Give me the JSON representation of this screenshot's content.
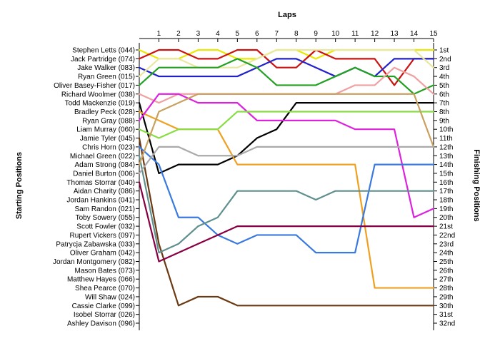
{
  "chart_data": {
    "type": "line",
    "title": "",
    "xlabel": "Laps",
    "ylabel_left": "Starting Positions",
    "ylabel_right": "Finishing Positions",
    "x": [
      1,
      2,
      3,
      4,
      5,
      6,
      7,
      8,
      9,
      10,
      11,
      12,
      13,
      14,
      15
    ],
    "xlim": [
      0,
      15
    ],
    "ylim": [
      1,
      32
    ],
    "y_inverted": true,
    "grid": false,
    "legend": "none",
    "start_labels": [
      "Stephen Letts (044)",
      "Jack Partridge (074)",
      "Jake Walker (083)",
      "Ryan Green (015)",
      "Oliver Basey-Fisher (017)",
      "Richard Woolmer (038)",
      "Todd Mackenzie (019)",
      "Bradley Peck (028)",
      "Ryan Gray (088)",
      "Liam Murray (060)",
      "Jamie Tyler (045)",
      "Chris Horn (023)",
      "Michael Green (022)",
      "Adam Strong (084)",
      "Daniel Burton (006)",
      "Thomas Storrar (040)",
      "Aidan Charity (086)",
      "Jordan Hankins (041)",
      "Sam Randon (021)",
      "Toby Sowery (055)",
      "Scott Fowler (032)",
      "Rupert Vickers (097)",
      "Patrycja Zabawska (033)",
      "Oliver Graham (042)",
      "Jordan Montgomery (082)",
      "Mason Bates (073)",
      "Matthew Hayes (066)",
      "Shea Pearce (070)",
      "Will Shaw (024)",
      "Cassie Clarke (099)",
      "Isobel Storrar (026)",
      "Ashley Davison (096)"
    ],
    "finish_labels": [
      "1st",
      "2nd",
      "3rd",
      "4th",
      "5th",
      "6th",
      "7th",
      "8th",
      "9th",
      "10th",
      "11th",
      "12th",
      "13th",
      "14th",
      "15th",
      "16th",
      "17th",
      "18th",
      "19th",
      "20th",
      "21st",
      "22nd",
      "23rd",
      "24th",
      "25th",
      "26th",
      "27th",
      "28th",
      "29th",
      "30th",
      "31st",
      "32nd"
    ],
    "series": [
      {
        "color": "#e8e800",
        "positions": [
          1,
          2,
          2,
          1,
          1,
          2,
          2,
          1,
          1,
          2,
          1,
          1,
          1,
          1,
          1,
          1
        ]
      },
      {
        "color": "#cc1111",
        "positions": [
          2,
          1,
          1,
          2,
          2,
          1,
          1,
          3,
          3,
          1,
          2,
          2,
          2,
          5,
          2,
          2
        ]
      },
      {
        "color": "#2222cc",
        "positions": [
          3,
          4,
          4,
          4,
          4,
          4,
          3,
          2,
          2,
          3,
          4,
          3,
          4,
          2,
          2,
          2
        ]
      },
      {
        "color": "#e8e8a0",
        "positions": [
          4,
          2,
          2,
          3,
          3,
          3,
          2,
          1,
          1,
          1,
          1,
          1,
          1,
          1,
          1,
          3
        ]
      },
      {
        "color": "#22a022",
        "positions": [
          5,
          3,
          3,
          3,
          3,
          2,
          3,
          5,
          5,
          5,
          4,
          3,
          4,
          4,
          6,
          5
        ]
      },
      {
        "color": "#f0a0a0",
        "positions": [
          6,
          7,
          6,
          6,
          6,
          6,
          6,
          6,
          6,
          6,
          6,
          5,
          5,
          3,
          4,
          6
        ]
      },
      {
        "color": "#000000",
        "positions": [
          7,
          15,
          14,
          14,
          14,
          13,
          11,
          10,
          7,
          7,
          7,
          7,
          7,
          7,
          7,
          7
        ]
      },
      {
        "color": "#f0a020",
        "positions": [
          8,
          9,
          10,
          10,
          10,
          14,
          14,
          14,
          14,
          14,
          14,
          14,
          28,
          28,
          28,
          28
        ]
      },
      {
        "color": "#dd22dd",
        "positions": [
          9,
          6,
          6,
          7,
          7,
          7,
          9,
          9,
          9,
          9,
          9,
          10,
          10,
          10,
          20,
          19
        ]
      },
      {
        "color": "#88dd44",
        "positions": [
          10,
          11,
          10,
          10,
          10,
          8,
          8,
          8,
          8,
          8,
          8,
          8,
          8,
          8,
          8,
          8
        ]
      },
      {
        "color": "#6b3a12",
        "positions": [
          11,
          23,
          30,
          29,
          29,
          30,
          30,
          30,
          30,
          30,
          30,
          30,
          30,
          30,
          30,
          30
        ]
      },
      {
        "color": "#3a7adf",
        "positions": [
          12,
          14,
          20,
          20,
          22,
          23,
          22,
          22,
          22,
          24,
          24,
          24,
          14,
          14,
          14,
          14
        ]
      },
      {
        "color": "#5f8f8f",
        "positions": [
          13,
          24,
          23,
          21,
          20,
          17,
          17,
          17,
          17,
          18,
          17,
          17,
          17,
          17,
          17,
          17
        ]
      },
      {
        "color": "#c8a060",
        "positions": [
          14,
          8,
          7,
          6,
          6,
          6,
          6,
          6,
          6,
          6,
          6,
          6,
          6,
          6,
          6,
          12
        ]
      },
      {
        "color": "#aaaaaa",
        "positions": [
          15,
          12,
          12,
          13,
          13,
          13,
          12,
          12,
          12,
          12,
          12,
          12,
          12,
          12,
          12,
          12
        ]
      },
      {
        "color": "#880044",
        "positions": [
          16,
          25,
          24,
          23,
          22,
          21,
          21,
          21,
          21,
          21,
          21,
          21,
          21,
          21,
          21,
          21
        ]
      }
    ]
  }
}
